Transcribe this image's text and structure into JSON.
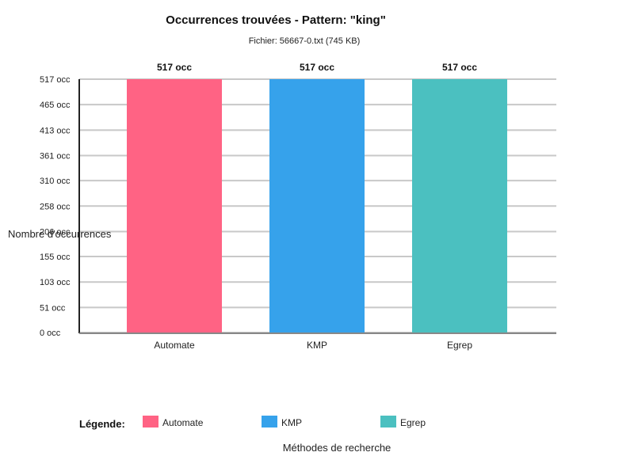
{
  "chart_data": {
    "type": "bar",
    "title": "Occurrences trouvées - Pattern: \"king\"",
    "subtitle": "Fichier: 56667-0.txt (745 KB)",
    "ylabel": "Nombre d'occurrences",
    "xlabel": "Méthodes de recherche",
    "categories": [
      "Automate",
      "KMP",
      "Egrep"
    ],
    "values": [
      517,
      517,
      517
    ],
    "data_labels": [
      "517 occ",
      "517 occ",
      "517 occ"
    ],
    "colors": [
      "#ff6384",
      "#36a2eb",
      "#4bc0c0"
    ],
    "ylim": [
      0,
      517
    ],
    "yticks": [
      {
        "value": 0,
        "label": "0 occ"
      },
      {
        "value": 51,
        "label": "51 occ"
      },
      {
        "value": 103,
        "label": "103 occ"
      },
      {
        "value": 155,
        "label": "155 occ"
      },
      {
        "value": 206,
        "label": "206 occ"
      },
      {
        "value": 258,
        "label": "258 occ"
      },
      {
        "value": 310,
        "label": "310 occ"
      },
      {
        "value": 361,
        "label": "361 occ"
      },
      {
        "value": 413,
        "label": "413 occ"
      },
      {
        "value": 465,
        "label": "465 occ"
      },
      {
        "value": 517,
        "label": "517 occ"
      }
    ],
    "grid": true,
    "legend": {
      "title": "Légende:",
      "placement": "bottom",
      "entries": [
        "Automate",
        "KMP",
        "Egrep"
      ]
    }
  }
}
